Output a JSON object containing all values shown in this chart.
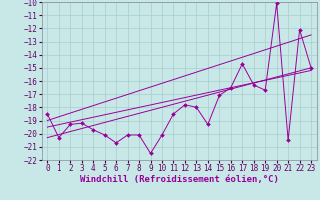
{
  "xlabel": "Windchill (Refroidissement éolien,°C)",
  "x": [
    0,
    1,
    2,
    3,
    4,
    5,
    6,
    7,
    8,
    9,
    10,
    11,
    12,
    13,
    14,
    15,
    16,
    17,
    18,
    19,
    20,
    21,
    22,
    23
  ],
  "y": [
    -18.5,
    -20.3,
    -19.3,
    -19.2,
    -19.7,
    -20.1,
    -20.7,
    -20.1,
    -20.1,
    -21.5,
    -20.1,
    -18.5,
    -17.8,
    -18.0,
    -19.3,
    -17.1,
    -16.5,
    -14.7,
    -16.3,
    -16.7,
    -10.1,
    -20.5,
    -12.1,
    -15.0
  ],
  "line_color": "#990099",
  "marker": "D",
  "marker_size": 2.0,
  "bg_color": "#c8e8e8",
  "grid_color": "#aacccc",
  "ylim": [
    -22,
    -10
  ],
  "xlim": [
    -0.5,
    23.5
  ],
  "yticks": [
    -10,
    -11,
    -12,
    -13,
    -14,
    -15,
    -16,
    -17,
    -18,
    -19,
    -20,
    -21,
    -22
  ],
  "xticks": [
    0,
    1,
    2,
    3,
    4,
    5,
    6,
    7,
    8,
    9,
    10,
    11,
    12,
    13,
    14,
    15,
    16,
    17,
    18,
    19,
    20,
    21,
    22,
    23
  ],
  "tick_fontsize": 5.5,
  "xlabel_fontsize": 6.5,
  "line1_x": [
    0,
    23
  ],
  "line1_y": [
    -19.0,
    -12.5
  ],
  "line2_x": [
    0,
    23
  ],
  "line2_y": [
    -19.5,
    -15.2
  ],
  "line3_x": [
    0,
    23
  ],
  "line3_y": [
    -20.3,
    -15.0
  ]
}
